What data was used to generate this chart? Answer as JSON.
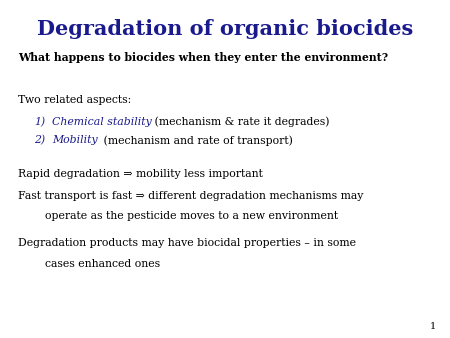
{
  "title": "Degradation of organic biocides",
  "title_color": "#1a1a8c",
  "title_fontsize": 15,
  "body_fontsize": 7.8,
  "bold_fontsize": 7.8,
  "background_color": "#ffffff",
  "blue_color": "#1a1a8c",
  "black_color": "#000000"
}
